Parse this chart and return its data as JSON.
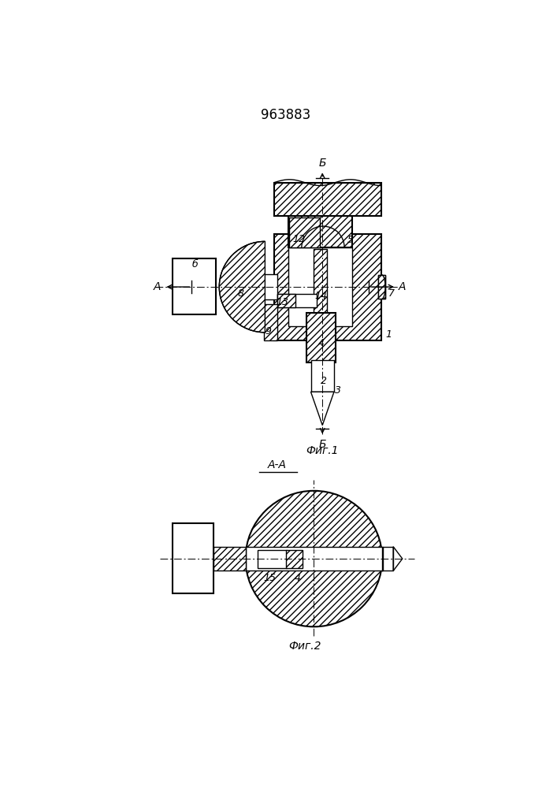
{
  "title": "963883",
  "bg_color": "#ffffff",
  "fig1_label": "Фиг.1",
  "fig2_label": "Фиг.2",
  "section_label": "А-А"
}
